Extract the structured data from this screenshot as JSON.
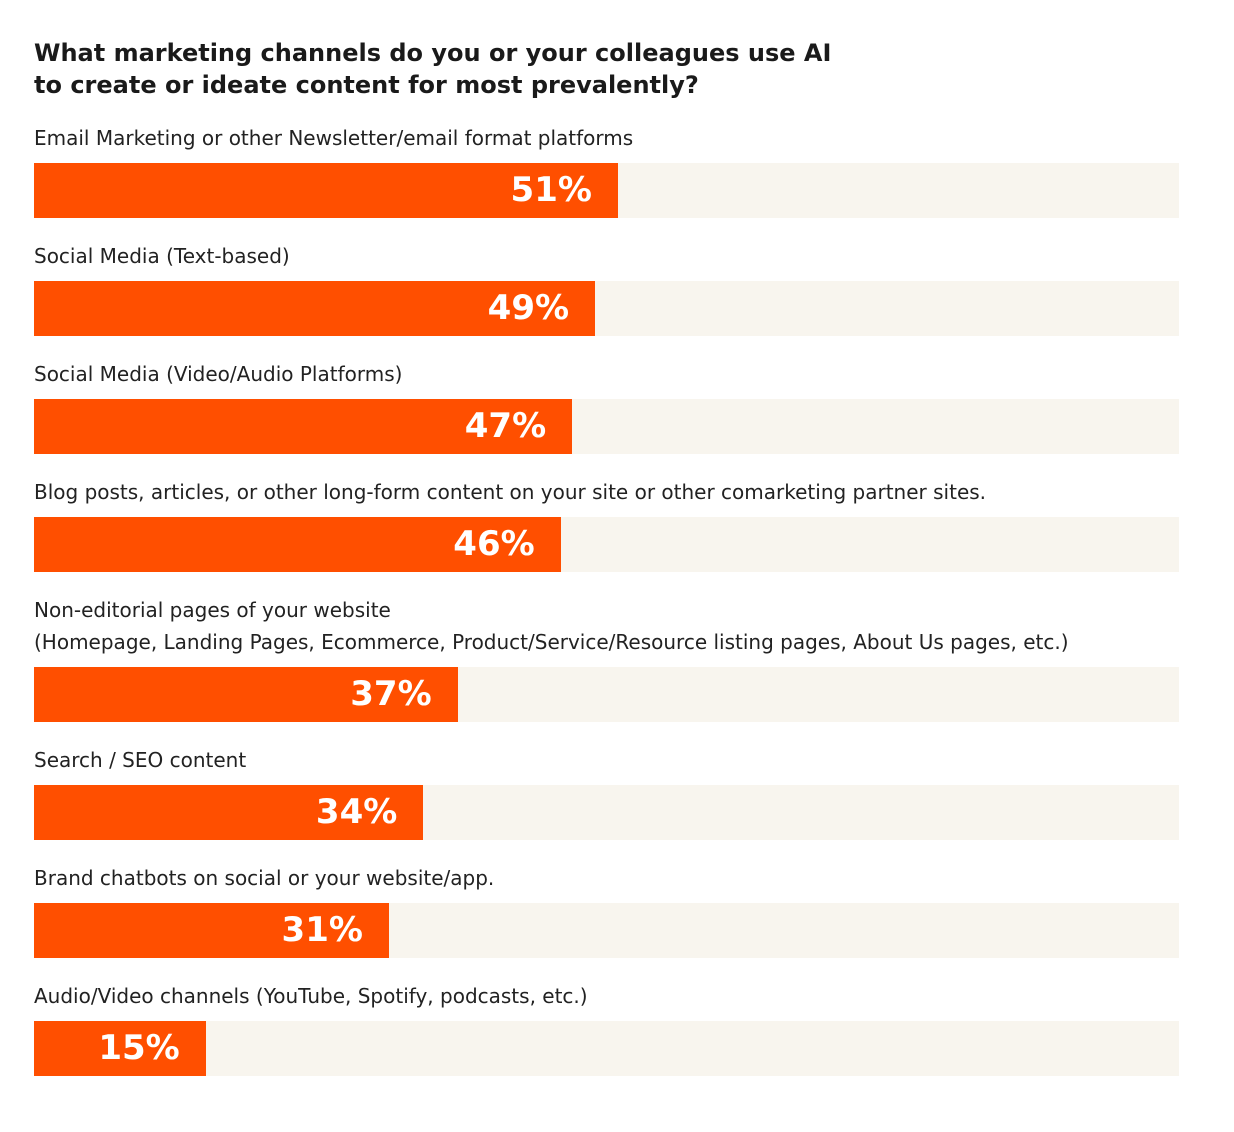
{
  "chart_data": {
    "type": "bar",
    "orientation": "horizontal",
    "title": "What marketing channels do you or your colleagues use AI\nto create or ideate content for most prevalently?",
    "categories": [
      "Email Marketing or other Newsletter/email format platforms",
      "Social Media (Text-based)",
      "Social Media (Video/Audio Platforms)",
      "Blog posts, articles, or other long-form content on your site or other comarketing partner sites.",
      "Non-editorial pages of your website\n(Homepage, Landing Pages, Ecommerce, Product/Service/Resource listing pages, About Us pages, etc.)",
      "Search / SEO content",
      "Brand chatbots on social or your website/app.",
      "Audio/Video channels (YouTube, Spotify, podcasts, etc.)"
    ],
    "values": [
      51,
      49,
      47,
      46,
      37,
      34,
      31,
      15
    ],
    "value_labels": [
      "51%",
      "49%",
      "47%",
      "46%",
      "37%",
      "34%",
      "31%",
      "15%"
    ],
    "color": "#ff4f00",
    "track_color": "#f8f5ee",
    "xlim": [
      0,
      100
    ]
  }
}
